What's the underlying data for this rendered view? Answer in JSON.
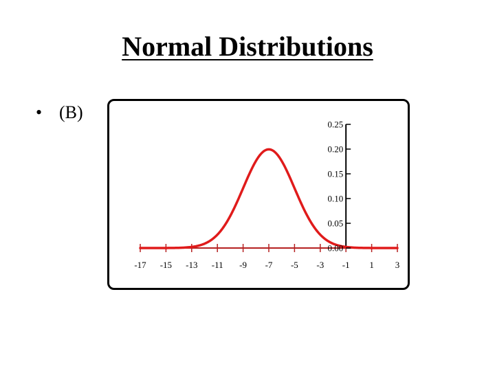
{
  "slide": {
    "title": "Normal Distributions",
    "bullet": "(B)"
  },
  "colors": {
    "curve": "#e01b1b",
    "x_axis": "#b52020",
    "y_axis": "#000000"
  },
  "chart_data": {
    "type": "line",
    "title": "",
    "xlabel": "",
    "ylabel": "",
    "xlim": [
      -17,
      3
    ],
    "ylim": [
      0,
      0.25
    ],
    "x_ticks": [
      -17,
      -15,
      -13,
      -11,
      -9,
      -7,
      -5,
      -3,
      -1,
      1,
      3
    ],
    "y_ticks": [
      "0.00",
      "0.05",
      "0.10",
      "0.15",
      "0.20",
      "0.25"
    ],
    "y_axis_at_x": -1,
    "grid": false,
    "legend": "none",
    "series": [
      {
        "distribution": "normal",
        "mean": -7,
        "sd": 2,
        "x": [
          -17,
          -16,
          -15,
          -14,
          -13,
          -12,
          -11,
          -10,
          -9,
          -8,
          -7,
          -6,
          -5,
          -4,
          -3,
          -2,
          -1,
          0,
          1,
          2,
          3
        ],
        "values": [
          0.0,
          0.0,
          0.0001,
          0.0004,
          0.0022,
          0.0088,
          0.027,
          0.0648,
          0.121,
          0.176,
          0.1995,
          0.176,
          0.121,
          0.0648,
          0.027,
          0.0088,
          0.0022,
          0.0004,
          0.0001,
          0.0,
          0.0
        ]
      }
    ]
  }
}
